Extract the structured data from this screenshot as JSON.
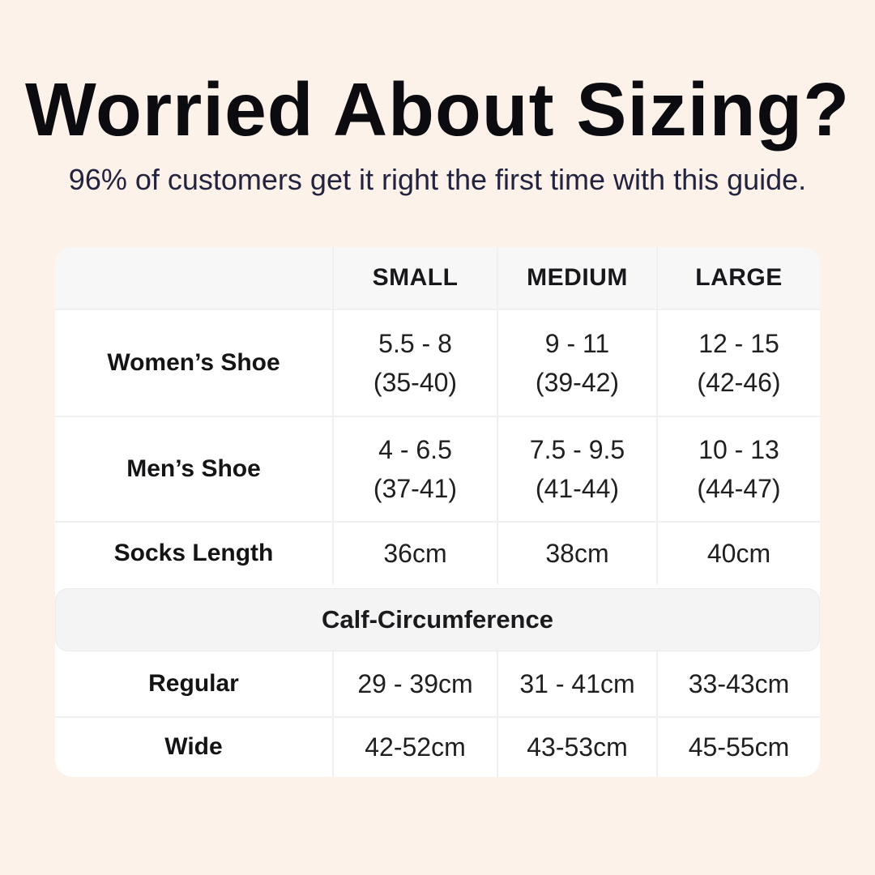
{
  "page": {
    "background_color": "#fcf2ea",
    "card_color": "#ffffff",
    "header_row_color": "#f7f7f7",
    "band_color": "#f4f4f5",
    "divider_color": "#efefef",
    "title_color": "#0c0c10",
    "subtitle_color": "#23233f"
  },
  "header": {
    "title": "Worried About Sizing?",
    "subtitle": "96% of customers get it right the first time with this guide."
  },
  "table": {
    "columns": [
      "",
      "SMALL",
      "MEDIUM",
      "LARGE"
    ],
    "section_title": "Calf-Circumference",
    "rows": [
      {
        "label": "Women’s Shoe",
        "small": {
          "line1": "5.5 - 8",
          "line2": "(35-40)"
        },
        "medium": {
          "line1": "9 - 11",
          "line2": "(39-42)"
        },
        "large": {
          "line1": "12 - 15",
          "line2": "(42-46)"
        }
      },
      {
        "label": "Men’s Shoe",
        "small": {
          "line1": "4 - 6.5",
          "line2": "(37-41)"
        },
        "medium": {
          "line1": "7.5 - 9.5",
          "line2": "(41-44)"
        },
        "large": {
          "line1": "10 - 13",
          "line2": "(44-47)"
        }
      },
      {
        "label": "Socks Length",
        "small": "36cm",
        "medium": "38cm",
        "large": "40cm"
      },
      {
        "label": "Regular",
        "small": "29 - 39cm",
        "medium": "31 - 41cm",
        "large": "33-43cm"
      },
      {
        "label": "Wide",
        "small": "42-52cm",
        "medium": "43-53cm",
        "large": "45-55cm"
      }
    ]
  },
  "chart_data": {
    "type": "table",
    "title": "Worried About Sizing?",
    "subtitle": "96% of customers get it right the first time with this guide.",
    "columns": [
      "",
      "SMALL",
      "MEDIUM",
      "LARGE"
    ],
    "rows": [
      [
        "Women’s Shoe",
        "5.5 - 8 (35-40)",
        "9 - 11 (39-42)",
        "12 - 15 (42-46)"
      ],
      [
        "Men’s Shoe",
        "4 - 6.5 (37-41)",
        "7.5 - 9.5 (41-44)",
        "10 - 13 (44-47)"
      ],
      [
        "Socks Length",
        "36cm",
        "38cm",
        "40cm"
      ],
      [
        "Calf-Circumference (section header)",
        "",
        "",
        ""
      ],
      [
        "Regular",
        "29 - 39cm",
        "31 - 41cm",
        "33-43cm"
      ],
      [
        "Wide",
        "42-52cm",
        "43-53cm",
        "45-55cm"
      ]
    ],
    "layout": {
      "grid": "off",
      "header_row_shaded": true,
      "section_band_shaded": true
    }
  }
}
